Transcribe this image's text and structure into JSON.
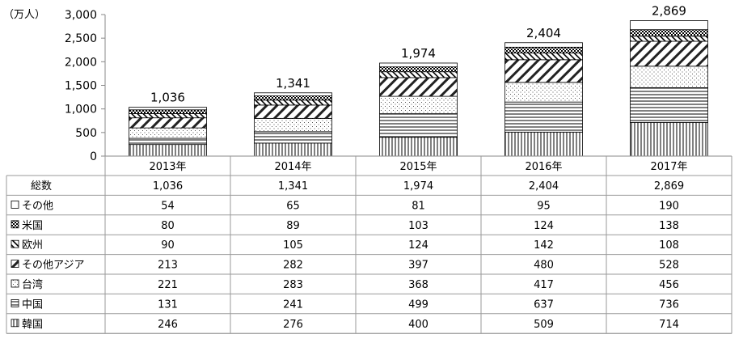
{
  "chart_data": {
    "type": "bar",
    "stacked": true,
    "unit_label": "（万人）",
    "categories": [
      "2013年",
      "2014年",
      "2015年",
      "2016年",
      "2017年"
    ],
    "ylim": [
      0,
      3000
    ],
    "yticks": [
      "0",
      "500",
      "1,000",
      "1,500",
      "2,000",
      "2,500",
      "3,000"
    ],
    "ytick_values": [
      0,
      500,
      1000,
      1500,
      2000,
      2500,
      3000
    ],
    "grid": false,
    "total": {
      "label": "総数",
      "values": [
        1036,
        1341,
        1974,
        2404,
        2869
      ],
      "display": [
        "1,036",
        "1,341",
        "1,974",
        "2,404",
        "2,869"
      ]
    },
    "series": [
      {
        "name": "韓国",
        "pattern": "vlines",
        "values": [
          246,
          276,
          400,
          509,
          714
        ]
      },
      {
        "name": "中国",
        "pattern": "hlines",
        "values": [
          131,
          241,
          499,
          637,
          736
        ]
      },
      {
        "name": "台湾",
        "pattern": "dots",
        "values": [
          221,
          283,
          368,
          417,
          456
        ]
      },
      {
        "name": "その他アジア",
        "pattern": "diag-wide",
        "values": [
          213,
          282,
          397,
          480,
          528
        ]
      },
      {
        "name": "欧州",
        "pattern": "diag-back",
        "values": [
          90,
          105,
          124,
          142,
          108
        ]
      },
      {
        "name": "米国",
        "pattern": "checker",
        "values": [
          80,
          89,
          103,
          124,
          138
        ]
      },
      {
        "name": "その他",
        "pattern": "white",
        "values": [
          54,
          65,
          81,
          95,
          190
        ]
      }
    ],
    "table_row_order": [
      "total",
      "その他",
      "米国",
      "欧州",
      "その他アジア",
      "台湾",
      "中国",
      "韓国"
    ]
  }
}
